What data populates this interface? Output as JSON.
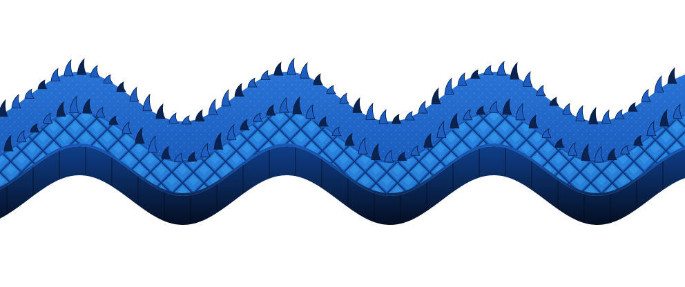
{
  "scene": {
    "background_color": "#ffffff",
    "subject": "wavy-scaled-band",
    "colors": {
      "top_surface": "#1e64c8",
      "top_surface_light": "#2a78dc",
      "scale_fill": "#1a5fc0",
      "scale_highlight": "#3aa0f0",
      "lattice_line": "#0a2a5c",
      "edge_shadow": "#061a3a",
      "spike": "#1c5ec2",
      "spike_dark": "#081c40"
    }
  }
}
